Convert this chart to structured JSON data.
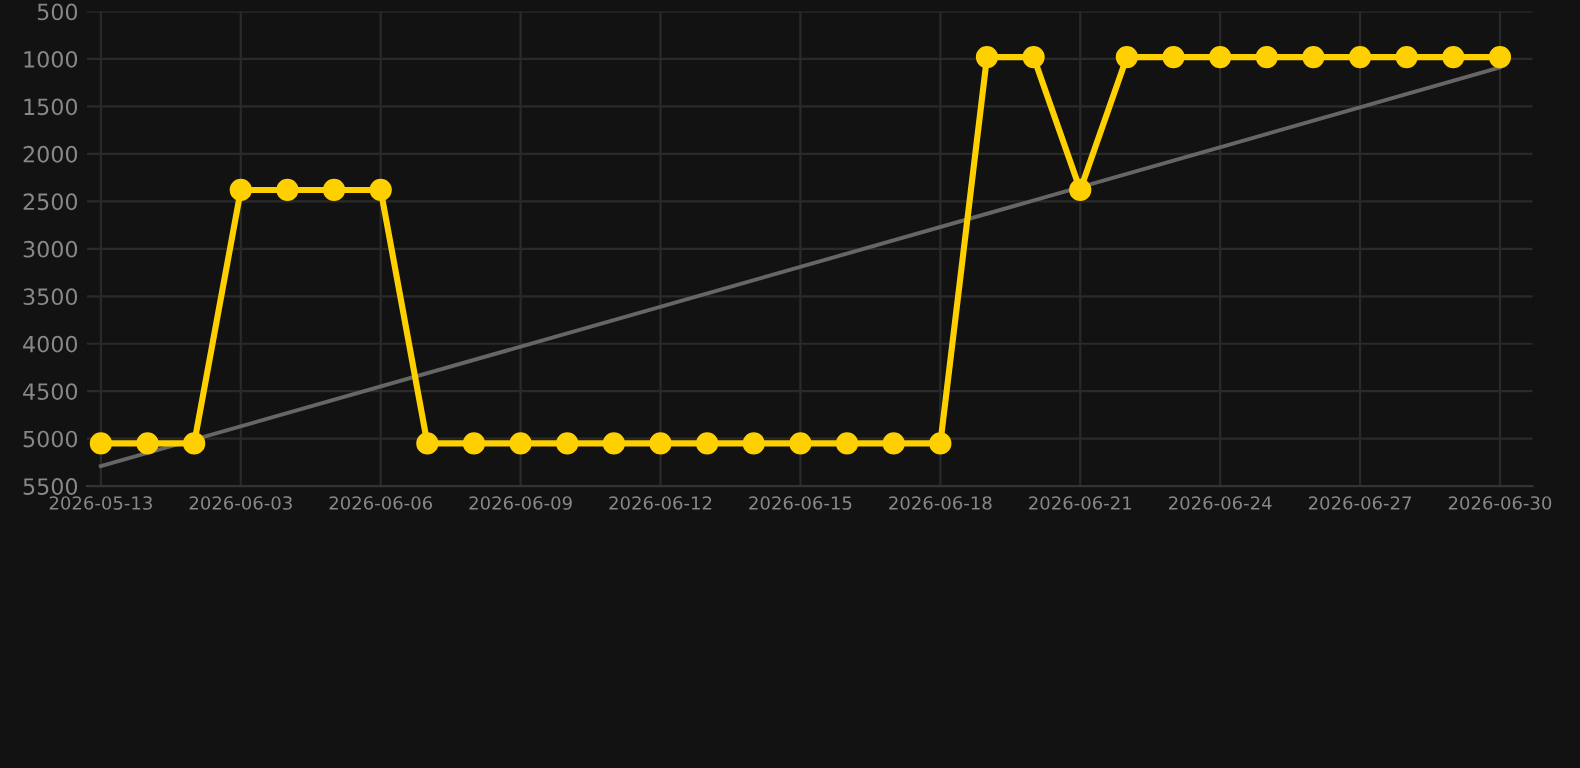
{
  "chart_data": {
    "type": "line",
    "categories": [
      "2026-05-13",
      null,
      null,
      "2026-06-03",
      null,
      null,
      "2026-06-06",
      null,
      null,
      "2026-06-09",
      null,
      null,
      "2026-06-12",
      null,
      null,
      "2026-06-15",
      null,
      null,
      "2026-06-18",
      null,
      null,
      "2026-06-21",
      null,
      null,
      "2026-06-24",
      null,
      null,
      "2026-06-27",
      null,
      null,
      "2026-06-30"
    ],
    "series": [
      {
        "color": "#ffd000",
        "marker": "circle",
        "values": [
          5050,
          5050,
          5050,
          2380,
          2380,
          2380,
          2380,
          5050,
          5050,
          5050,
          5050,
          5050,
          5050,
          5050,
          5050,
          5050,
          5050,
          5050,
          5050,
          980,
          980,
          2380,
          980,
          980,
          980,
          980,
          980,
          980,
          980,
          980,
          980
        ]
      },
      {
        "type": "line",
        "color": "#666666",
        "marker": "none",
        "values": [
          5290,
          null,
          null,
          null,
          null,
          null,
          null,
          null,
          null,
          null,
          null,
          null,
          null,
          null,
          null,
          null,
          null,
          null,
          null,
          null,
          null,
          null,
          null,
          null,
          null,
          null,
          null,
          null,
          null,
          null,
          1090
        ]
      }
    ],
    "ylim": [
      5500,
      500
    ],
    "yticks": [
      500,
      1000,
      1500,
      2000,
      2500,
      3000,
      3500,
      4000,
      4500,
      5000,
      5500
    ],
    "grid": true
  }
}
